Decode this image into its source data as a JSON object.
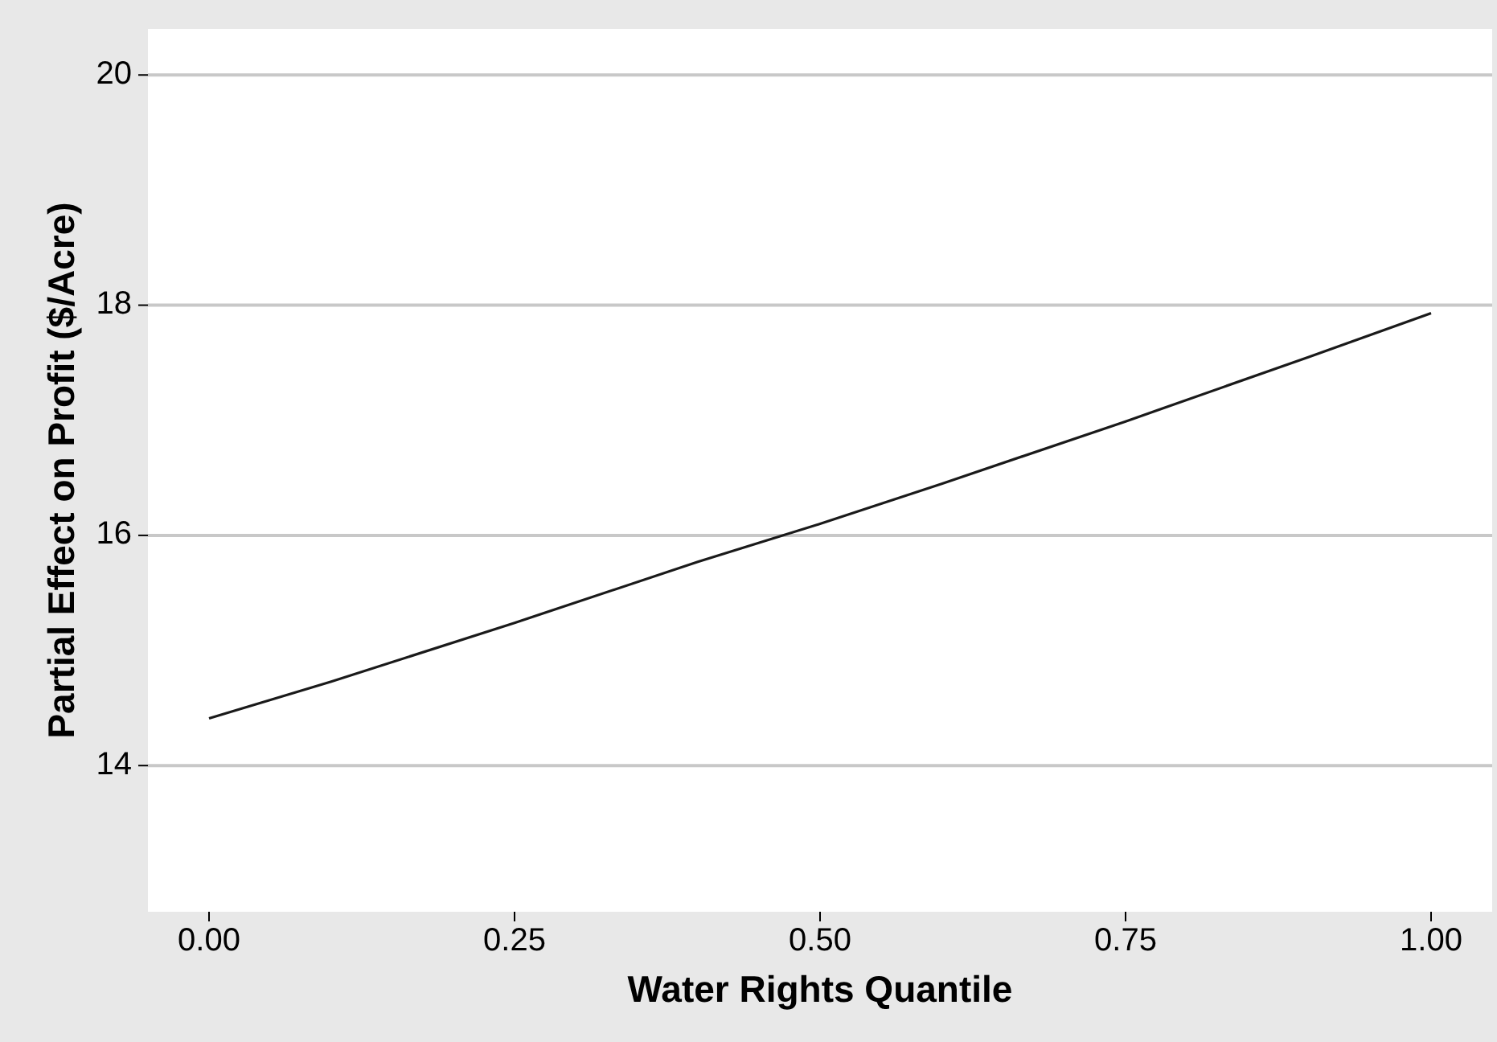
{
  "chart_data": {
    "type": "line",
    "xlabel": "Water Rights Quantile",
    "ylabel": "Partial Effect on Profit ($/Acre)",
    "x": [
      0,
      0.1,
      0.25,
      0.4,
      0.5,
      0.6,
      0.75,
      0.9,
      1
    ],
    "series": [
      {
        "color": "#1a1a1a",
        "values": [
          14.41,
          14.73,
          15.24,
          15.77,
          16.1,
          16.45,
          16.99,
          17.55,
          17.93
        ]
      }
    ],
    "xlim": [
      -0.05,
      1.05
    ],
    "xticks": [
      {
        "value": 0,
        "label": "0.00"
      },
      {
        "value": 0.25,
        "label": "0.25"
      },
      {
        "value": 0.5,
        "label": "0.50"
      },
      {
        "value": 0.75,
        "label": "0.75"
      },
      {
        "value": 1,
        "label": "1.00"
      }
    ],
    "ylim": [
      12.73,
      20.4
    ],
    "yticks": [
      14,
      16,
      18,
      20
    ],
    "grid": "y",
    "marker": "none",
    "line_style": "solid"
  }
}
